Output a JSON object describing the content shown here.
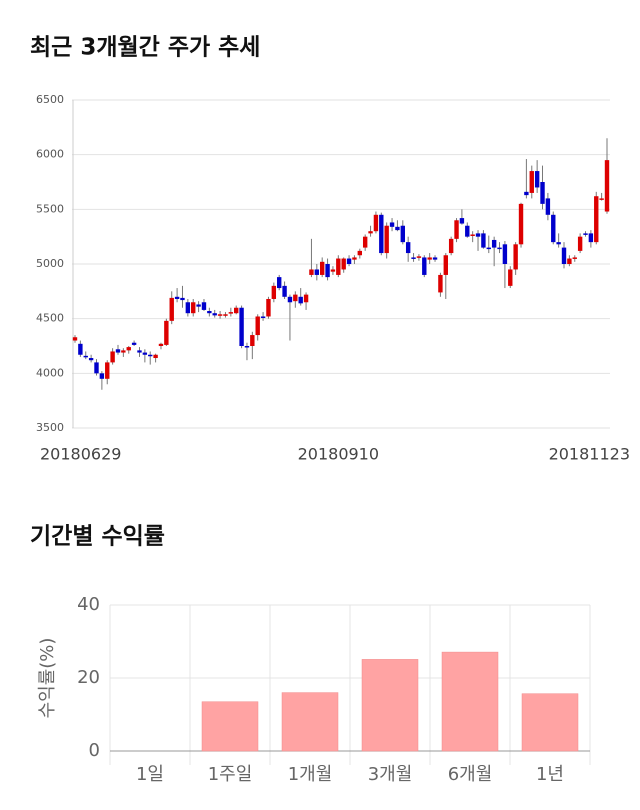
{
  "chart_data": [
    {
      "type": "candlestick",
      "title": "최근 3개월간 주가 추세",
      "up_color": "#dd0000",
      "down_color": "#0000cc",
      "ylim": [
        3500,
        6500
      ],
      "yticks": [
        3500,
        4000,
        4500,
        5000,
        5500,
        6000,
        6500
      ],
      "grid": true,
      "categories": [
        "20180629",
        null,
        null,
        null,
        null,
        null,
        null,
        null,
        null,
        null,
        null,
        null,
        null,
        null,
        null,
        null,
        null,
        null,
        null,
        null,
        null,
        null,
        null,
        null,
        null,
        null,
        null,
        null,
        null,
        null,
        null,
        null,
        null,
        null,
        null,
        null,
        null,
        null,
        null,
        null,
        null,
        null,
        null,
        null,
        null,
        null,
        null,
        null,
        null,
        "20180910",
        null,
        null,
        null,
        null,
        null,
        null,
        null,
        null,
        null,
        null,
        null,
        null,
        null,
        null,
        null,
        null,
        null,
        null,
        null,
        null,
        null,
        null,
        null,
        null,
        null,
        null,
        null,
        null,
        null,
        null,
        null,
        null,
        null,
        null,
        null,
        null,
        null,
        null,
        null,
        null,
        null,
        null,
        null,
        null,
        null,
        null,
        null,
        null,
        null,
        "20181123"
      ],
      "open": [
        4300,
        4270,
        4160,
        4140,
        4100,
        4000,
        3950,
        4100,
        4220,
        4190,
        4210,
        4280,
        4210,
        4190,
        4170,
        4140,
        4250,
        4260,
        4480,
        4700,
        4690,
        4650,
        4550,
        4630,
        4650,
        4570,
        4550,
        4540,
        4530,
        4550,
        4550,
        4600,
        4250,
        4250,
        4350,
        4520,
        4520,
        4680,
        4880,
        4800,
        4700,
        4660,
        4700,
        4650,
        4900,
        4950,
        4900,
        5000,
        4930,
        4900,
        4950,
        5050,
        5040,
        5080,
        5150,
        5280,
        5300,
        5450,
        5100,
        5380,
        5340,
        5350,
        5200,
        5060,
        5060,
        5060,
        5040,
        5060,
        4740,
        4900,
        5100,
        5230,
        5420,
        5350,
        5260,
        5280,
        5280,
        5150,
        5220,
        5150,
        5180,
        4800,
        4950,
        5180,
        5660,
        5650,
        5850,
        5750,
        5600,
        5450,
        5200,
        5150,
        5000,
        5050,
        5120,
        5280,
        5280,
        5200,
        5600,
        5480
      ],
      "high": [
        4350,
        4300,
        4200,
        4170,
        4130,
        4020,
        4120,
        4230,
        4260,
        4230,
        4250,
        4300,
        4240,
        4220,
        4200,
        4180,
        4280,
        4500,
        4750,
        4780,
        4800,
        4680,
        4680,
        4660,
        4680,
        4600,
        4580,
        4570,
        4560,
        4600,
        4620,
        4620,
        4280,
        4380,
        4540,
        4560,
        4700,
        4830,
        4900,
        4840,
        4720,
        4750,
        4780,
        4740,
        5230,
        5000,
        5060,
        5050,
        4980,
        5080,
        5060,
        5080,
        5080,
        5140,
        5270,
        5350,
        5480,
        5470,
        5380,
        5420,
        5400,
        5400,
        5250,
        5100,
        5090,
        5080,
        5100,
        5080,
        4920,
        5100,
        5250,
        5420,
        5500,
        5380,
        5300,
        5310,
        5310,
        5260,
        5250,
        5200,
        5210,
        4980,
        5200,
        5560,
        5960,
        5900,
        5950,
        5900,
        5650,
        5480,
        5280,
        5200,
        5080,
        5080,
        5280,
        5300,
        5310,
        5660,
        5650,
        6150
      ],
      "low": [
        4280,
        4150,
        4130,
        4100,
        3980,
        3850,
        3900,
        4080,
        4170,
        4150,
        4180,
        4250,
        4150,
        4100,
        4080,
        4100,
        4220,
        4250,
        4450,
        4650,
        4600,
        4520,
        4520,
        4560,
        4570,
        4520,
        4510,
        4500,
        4510,
        4520,
        4540,
        4230,
        4120,
        4130,
        4300,
        4480,
        4500,
        4650,
        4760,
        4680,
        4300,
        4600,
        4620,
        4580,
        4880,
        4850,
        4880,
        4850,
        4900,
        4880,
        4920,
        4980,
        5000,
        5050,
        5120,
        5250,
        5280,
        5080,
        5050,
        5300,
        5300,
        5180,
        5020,
        5020,
        5030,
        4880,
        5000,
        5020,
        4700,
        4680,
        5080,
        5200,
        5360,
        5240,
        5200,
        5120,
        5140,
        5100,
        4980,
        5100,
        4780,
        4780,
        4900,
        5150,
        5600,
        5600,
        5650,
        5500,
        5400,
        5180,
        5150,
        4960,
        4980,
        5020,
        5100,
        5250,
        5150,
        5180,
        5580,
        5460
      ],
      "close": [
        4330,
        4170,
        4150,
        4120,
        4000,
        3950,
        4100,
        4200,
        4190,
        4210,
        4240,
        4260,
        4190,
        4170,
        4160,
        4170,
        4270,
        4480,
        4690,
        4680,
        4670,
        4550,
        4650,
        4610,
        4580,
        4550,
        4530,
        4540,
        4540,
        4560,
        4600,
        4250,
        4240,
        4350,
        4520,
        4510,
        4680,
        4800,
        4780,
        4700,
        4650,
        4720,
        4640,
        4720,
        4950,
        4900,
        5020,
        4880,
        4950,
        5050,
        5050,
        5000,
        5060,
        5120,
        5250,
        5300,
        5450,
        5100,
        5350,
        5340,
        5310,
        5200,
        5100,
        5050,
        5070,
        4900,
        5060,
        5040,
        4900,
        5080,
        5230,
        5400,
        5370,
        5250,
        5270,
        5250,
        5150,
        5140,
        5150,
        5140,
        5000,
        4950,
        5180,
        5550,
        5630,
        5850,
        5700,
        5550,
        5450,
        5200,
        5180,
        5000,
        5050,
        5060,
        5250,
        5270,
        5200,
        5620,
        5600,
        5950
      ]
    },
    {
      "type": "bar",
      "title": "기간별 수익률",
      "y_label": "수익률(%)",
      "color": "#ffa3a3",
      "categories": [
        "1일",
        "1주일",
        "1개월",
        "3개월",
        "6개월",
        "1년"
      ],
      "values": [
        0,
        13.5,
        16,
        25.1,
        27.1,
        15.7
      ],
      "ylim": [
        0,
        40
      ],
      "yticks": [
        0,
        20,
        40
      ],
      "grid": true
    }
  ]
}
